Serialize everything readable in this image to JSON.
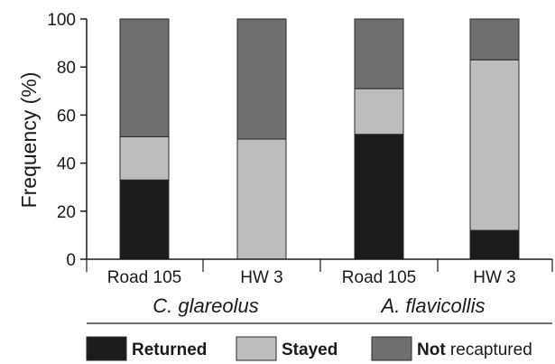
{
  "chart_data": {
    "type": "bar",
    "stacked": true,
    "ylabel": "Frequency (%)",
    "ylim": [
      0,
      100
    ],
    "yticks": [
      "0",
      "20",
      "40",
      "60",
      "80",
      "100"
    ],
    "categories": [
      "Road 105",
      "HW 3",
      "Road 105",
      "HW 3"
    ],
    "groups": [
      {
        "label": "C. glareolus",
        "categories": [
          0,
          1
        ]
      },
      {
        "label": "A. flavicollis",
        "categories": [
          2,
          3
        ]
      }
    ],
    "series": [
      {
        "name": "Returned",
        "color": "#1c1c1c",
        "values": [
          33,
          0,
          52,
          12
        ]
      },
      {
        "name": "Stayed",
        "color": "#bdbdbd",
        "values": [
          18,
          50,
          19,
          71
        ]
      },
      {
        "name": "Not recaptured",
        "color": "#6f6f6f",
        "values": [
          49,
          50,
          29,
          17
        ]
      }
    ],
    "legend": {
      "placement": "bottom",
      "entries": [
        {
          "prefix": "Returned",
          "suffix": ""
        },
        {
          "prefix": "Stayed",
          "suffix": ""
        },
        {
          "prefix": "Not",
          "suffix": " recaptured"
        }
      ]
    },
    "grid": false
  }
}
